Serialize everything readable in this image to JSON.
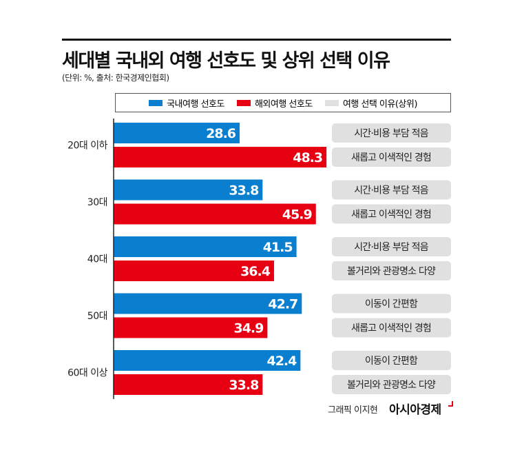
{
  "header": {
    "title": "세대별 국내외 여행 선호도 및 상위 선택 이유",
    "subtitle": "(단위: %, 출처: 한국경제인협회)"
  },
  "legend": [
    {
      "label": "국내여행 선호도",
      "color": "#0a7fcf"
    },
    {
      "label": "해외여행 선호도",
      "color": "#e60012"
    },
    {
      "label": "여행 선택 이유(상위)",
      "color": "#e0e0e0"
    }
  ],
  "chart_data": {
    "type": "bar",
    "orientation": "horizontal",
    "title": "세대별 국내외 여행 선호도 및 상위 선택 이유",
    "categories": [
      "20대 이하",
      "30대",
      "40대",
      "50대",
      "60대 이상"
    ],
    "series": [
      {
        "name": "국내여행 선호도",
        "color": "#0a7fcf",
        "values": [
          28.6,
          33.8,
          41.5,
          42.7,
          42.4
        ],
        "reasons": [
          "시간·비용 부담 적음",
          "시간·비용 부담 적음",
          "시간·비용 부담 적음",
          "이동이 간편함",
          "이동이 간편함"
        ]
      },
      {
        "name": "해외여행 선호도",
        "color": "#e60012",
        "values": [
          48.3,
          45.9,
          36.4,
          34.9,
          33.8
        ],
        "reasons": [
          "새롭고 이색적인 경험",
          "새롭고 이색적인 경험",
          "볼거리와 관광명소 다양",
          "새롭고 이색적인 경험",
          "볼거리와 관광명소 다양"
        ]
      }
    ],
    "data_labels": true,
    "grid": false
  },
  "footer": {
    "credit": "그래픽 이지현",
    "brand": "아시아경제"
  }
}
